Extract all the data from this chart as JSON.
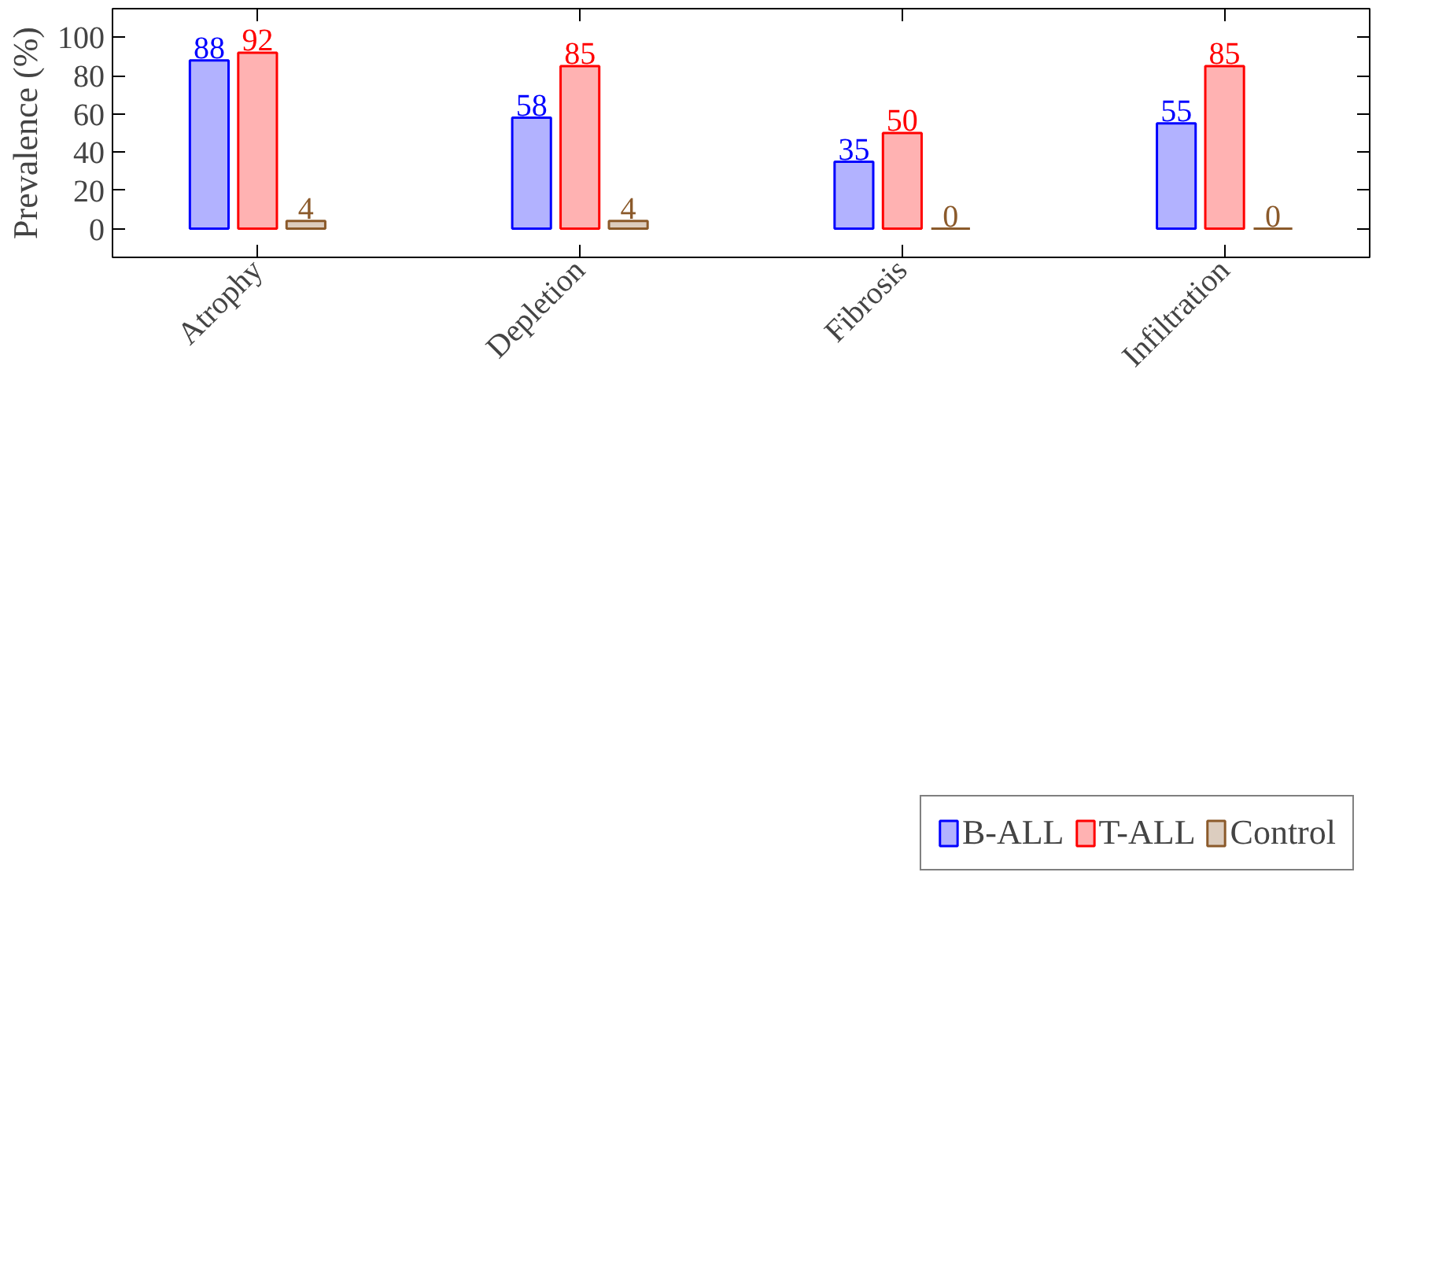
{
  "chart_data": {
    "type": "bar",
    "categories": [
      "Atrophy",
      "Depletion",
      "Fibrosis",
      "Infiltration"
    ],
    "ylabel": "Prevalence (%)",
    "ylim": [
      -15,
      115
    ],
    "yticks": [
      0,
      20,
      40,
      60,
      80,
      100
    ],
    "data_labels": true,
    "legend": "bottom",
    "grid": false,
    "series": [
      {
        "name": "B-ALL",
        "color": "#0000ff",
        "values": [
          88,
          58,
          35,
          55
        ]
      },
      {
        "name": "T-ALL",
        "color": "#ff0000",
        "values": [
          92,
          85,
          50,
          85
        ]
      },
      {
        "name": "Control",
        "color": "#8b5a2b",
        "values": [
          4,
          4,
          0,
          0
        ]
      }
    ]
  }
}
